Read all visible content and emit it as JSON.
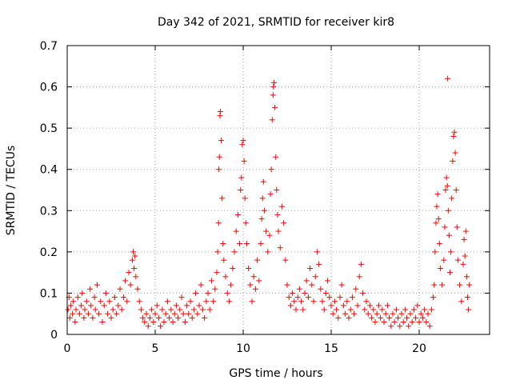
{
  "chart_data": {
    "type": "scatter",
    "title": "Day 342 of 2021, SRMTID for receiver kir8",
    "xlabel": "GPS time / hours",
    "ylabel": "SRMTID / TECUs",
    "xlim": [
      0,
      24
    ],
    "ylim": [
      0,
      0.7
    ],
    "xticks": [
      0,
      5,
      10,
      15,
      20
    ],
    "xtick_labels": [
      "0",
      "5",
      "10",
      "15",
      "20"
    ],
    "yticks": [
      0,
      0.1,
      0.2,
      0.3,
      0.4,
      0.5,
      0.6,
      0.7
    ],
    "ytick_labels": [
      "0",
      "0.1",
      "0.2",
      "0.3",
      "0.4",
      "0.5",
      "0.6",
      "0.7"
    ],
    "grid": true,
    "marker": "plus",
    "color": "#ff0000",
    "series": [
      {
        "name": "SRMTID",
        "points": [
          [
            0.05,
            0.06
          ],
          [
            0.1,
            0.09
          ],
          [
            0.15,
            0.04
          ],
          [
            0.2,
            0.07
          ],
          [
            0.3,
            0.05
          ],
          [
            0.35,
            0.08
          ],
          [
            0.45,
            0.03
          ],
          [
            0.5,
            0.06
          ],
          [
            0.6,
            0.09
          ],
          [
            0.7,
            0.05
          ],
          [
            0.8,
            0.07
          ],
          [
            0.85,
            0.1
          ],
          [
            0.95,
            0.04
          ],
          [
            1.0,
            0.06
          ],
          [
            1.1,
            0.08
          ],
          [
            1.2,
            0.05
          ],
          [
            1.3,
            0.11
          ],
          [
            1.35,
            0.07
          ],
          [
            1.45,
            0.04
          ],
          [
            1.55,
            0.09
          ],
          [
            1.6,
            0.06
          ],
          [
            1.7,
            0.12
          ],
          [
            1.8,
            0.05
          ],
          [
            1.9,
            0.08
          ],
          [
            2.0,
            0.03
          ],
          [
            2.1,
            0.07
          ],
          [
            2.2,
            0.1
          ],
          [
            2.3,
            0.05
          ],
          [
            2.4,
            0.08
          ],
          [
            2.5,
            0.04
          ],
          [
            2.6,
            0.06
          ],
          [
            2.7,
            0.09
          ],
          [
            2.8,
            0.05
          ],
          [
            2.9,
            0.07
          ],
          [
            3.0,
            0.11
          ],
          [
            3.1,
            0.06
          ],
          [
            3.2,
            0.09
          ],
          [
            3.3,
            0.13
          ],
          [
            3.4,
            0.08
          ],
          [
            3.5,
            0.15
          ],
          [
            3.6,
            0.12
          ],
          [
            3.7,
            0.18
          ],
          [
            3.75,
            0.2
          ],
          [
            3.8,
            0.16
          ],
          [
            3.85,
            0.19
          ],
          [
            3.9,
            0.14
          ],
          [
            4.0,
            0.11
          ],
          [
            4.1,
            0.08
          ],
          [
            4.2,
            0.06
          ],
          [
            4.3,
            0.04
          ],
          [
            4.4,
            0.03
          ],
          [
            4.5,
            0.05
          ],
          [
            4.6,
            0.02
          ],
          [
            4.7,
            0.04
          ],
          [
            4.8,
            0.06
          ],
          [
            4.9,
            0.03
          ],
          [
            5.0,
            0.05
          ],
          [
            5.1,
            0.07
          ],
          [
            5.2,
            0.04
          ],
          [
            5.3,
            0.02
          ],
          [
            5.4,
            0.06
          ],
          [
            5.5,
            0.03
          ],
          [
            5.6,
            0.05
          ],
          [
            5.7,
            0.08
          ],
          [
            5.8,
            0.04
          ],
          [
            5.9,
            0.06
          ],
          [
            6.0,
            0.03
          ],
          [
            6.1,
            0.05
          ],
          [
            6.2,
            0.07
          ],
          [
            6.3,
            0.04
          ],
          [
            6.4,
            0.06
          ],
          [
            6.5,
            0.09
          ],
          [
            6.6,
            0.05
          ],
          [
            6.7,
            0.03
          ],
          [
            6.8,
            0.07
          ],
          [
            6.9,
            0.05
          ],
          [
            7.0,
            0.08
          ],
          [
            7.1,
            0.04
          ],
          [
            7.2,
            0.06
          ],
          [
            7.3,
            0.1
          ],
          [
            7.4,
            0.05
          ],
          [
            7.5,
            0.07
          ],
          [
            7.6,
            0.12
          ],
          [
            7.7,
            0.06
          ],
          [
            7.8,
            0.04
          ],
          [
            7.9,
            0.08
          ],
          [
            8.0,
            0.1
          ],
          [
            8.1,
            0.06
          ],
          [
            8.2,
            0.13
          ],
          [
            8.3,
            0.08
          ],
          [
            8.4,
            0.11
          ],
          [
            8.5,
            0.15
          ],
          [
            8.55,
            0.2
          ],
          [
            8.6,
            0.27
          ],
          [
            8.62,
            0.4
          ],
          [
            8.65,
            0.43
          ],
          [
            8.68,
            0.53
          ],
          [
            8.7,
            0.54
          ],
          [
            8.75,
            0.47
          ],
          [
            8.8,
            0.33
          ],
          [
            8.85,
            0.22
          ],
          [
            8.9,
            0.18
          ],
          [
            9.0,
            0.14
          ],
          [
            9.1,
            0.1
          ],
          [
            9.2,
            0.08
          ],
          [
            9.3,
            0.12
          ],
          [
            9.4,
            0.16
          ],
          [
            9.5,
            0.2
          ],
          [
            9.6,
            0.25
          ],
          [
            9.7,
            0.29
          ],
          [
            9.8,
            0.22
          ],
          [
            9.85,
            0.35
          ],
          [
            9.9,
            0.38
          ],
          [
            9.95,
            0.46
          ],
          [
            10.0,
            0.47
          ],
          [
            10.05,
            0.42
          ],
          [
            10.1,
            0.33
          ],
          [
            10.15,
            0.27
          ],
          [
            10.2,
            0.22
          ],
          [
            10.3,
            0.16
          ],
          [
            10.4,
            0.12
          ],
          [
            10.5,
            0.08
          ],
          [
            10.6,
            0.14
          ],
          [
            10.7,
            0.11
          ],
          [
            10.8,
            0.18
          ],
          [
            10.9,
            0.13
          ],
          [
            11.0,
            0.22
          ],
          [
            11.05,
            0.28
          ],
          [
            11.1,
            0.33
          ],
          [
            11.15,
            0.37
          ],
          [
            11.2,
            0.3
          ],
          [
            11.3,
            0.25
          ],
          [
            11.4,
            0.2
          ],
          [
            11.5,
            0.24
          ],
          [
            11.55,
            0.34
          ],
          [
            11.6,
            0.4
          ],
          [
            11.65,
            0.52
          ],
          [
            11.7,
            0.58
          ],
          [
            11.72,
            0.6
          ],
          [
            11.75,
            0.61
          ],
          [
            11.8,
            0.55
          ],
          [
            11.85,
            0.43
          ],
          [
            11.9,
            0.35
          ],
          [
            11.95,
            0.29
          ],
          [
            12.0,
            0.25
          ],
          [
            12.1,
            0.21
          ],
          [
            12.2,
            0.31
          ],
          [
            12.3,
            0.27
          ],
          [
            12.4,
            0.18
          ],
          [
            12.5,
            0.12
          ],
          [
            12.6,
            0.09
          ],
          [
            12.7,
            0.07
          ],
          [
            12.8,
            0.1
          ],
          [
            12.9,
            0.08
          ],
          [
            13.0,
            0.06
          ],
          [
            13.1,
            0.09
          ],
          [
            13.2,
            0.11
          ],
          [
            13.3,
            0.08
          ],
          [
            13.4,
            0.06
          ],
          [
            13.5,
            0.1
          ],
          [
            13.6,
            0.13
          ],
          [
            13.7,
            0.09
          ],
          [
            13.8,
            0.16
          ],
          [
            13.9,
            0.12
          ],
          [
            14.0,
            0.08
          ],
          [
            14.1,
            0.14
          ],
          [
            14.2,
            0.2
          ],
          [
            14.3,
            0.17
          ],
          [
            14.4,
            0.11
          ],
          [
            14.5,
            0.08
          ],
          [
            14.6,
            0.06
          ],
          [
            14.7,
            0.1
          ],
          [
            14.8,
            0.13
          ],
          [
            14.9,
            0.09
          ],
          [
            15.0,
            0.07
          ],
          [
            15.1,
            0.05
          ],
          [
            15.2,
            0.08
          ],
          [
            15.3,
            0.06
          ],
          [
            15.4,
            0.04
          ],
          [
            15.5,
            0.09
          ],
          [
            15.6,
            0.12
          ],
          [
            15.7,
            0.07
          ],
          [
            15.8,
            0.05
          ],
          [
            15.9,
            0.08
          ],
          [
            16.0,
            0.04
          ],
          [
            16.1,
            0.06
          ],
          [
            16.2,
            0.09
          ],
          [
            16.3,
            0.05
          ],
          [
            16.4,
            0.11
          ],
          [
            16.5,
            0.07
          ],
          [
            16.6,
            0.14
          ],
          [
            16.7,
            0.17
          ],
          [
            16.8,
            0.1
          ],
          [
            16.9,
            0.06
          ],
          [
            17.0,
            0.08
          ],
          [
            17.1,
            0.05
          ],
          [
            17.2,
            0.07
          ],
          [
            17.3,
            0.04
          ],
          [
            17.4,
            0.06
          ],
          [
            17.5,
            0.03
          ],
          [
            17.6,
            0.05
          ],
          [
            17.7,
            0.07
          ],
          [
            17.8,
            0.04
          ],
          [
            17.9,
            0.06
          ],
          [
            18.0,
            0.03
          ],
          [
            18.1,
            0.05
          ],
          [
            18.2,
            0.07
          ],
          [
            18.3,
            0.04
          ],
          [
            18.4,
            0.02
          ],
          [
            18.5,
            0.05
          ],
          [
            18.6,
            0.03
          ],
          [
            18.7,
            0.06
          ],
          [
            18.8,
            0.04
          ],
          [
            18.9,
            0.02
          ],
          [
            19.0,
            0.05
          ],
          [
            19.1,
            0.03
          ],
          [
            19.2,
            0.06
          ],
          [
            19.3,
            0.04
          ],
          [
            19.4,
            0.02
          ],
          [
            19.5,
            0.05
          ],
          [
            19.6,
            0.03
          ],
          [
            19.7,
            0.06
          ],
          [
            19.8,
            0.04
          ],
          [
            19.9,
            0.07
          ],
          [
            20.0,
            0.03
          ],
          [
            20.1,
            0.05
          ],
          [
            20.2,
            0.04
          ],
          [
            20.3,
            0.06
          ],
          [
            20.4,
            0.03
          ],
          [
            20.5,
            0.05
          ],
          [
            20.6,
            0.02
          ],
          [
            20.7,
            0.06
          ],
          [
            20.8,
            0.09
          ],
          [
            20.85,
            0.12
          ],
          [
            20.9,
            0.2
          ],
          [
            20.95,
            0.27
          ],
          [
            21.0,
            0.31
          ],
          [
            21.05,
            0.34
          ],
          [
            21.1,
            0.28
          ],
          [
            21.15,
            0.22
          ],
          [
            21.2,
            0.16
          ],
          [
            21.3,
            0.12
          ],
          [
            21.4,
            0.18
          ],
          [
            21.45,
            0.26
          ],
          [
            21.5,
            0.35
          ],
          [
            21.55,
            0.38
          ],
          [
            21.6,
            0.36
          ],
          [
            21.62,
            0.62
          ],
          [
            21.65,
            0.3
          ],
          [
            21.7,
            0.24
          ],
          [
            21.75,
            0.15
          ],
          [
            21.8,
            0.2
          ],
          [
            21.85,
            0.33
          ],
          [
            21.9,
            0.42
          ],
          [
            21.95,
            0.48
          ],
          [
            22.0,
            0.49
          ],
          [
            22.05,
            0.44
          ],
          [
            22.1,
            0.35
          ],
          [
            22.15,
            0.26
          ],
          [
            22.2,
            0.18
          ],
          [
            22.3,
            0.12
          ],
          [
            22.4,
            0.08
          ],
          [
            22.5,
            0.17
          ],
          [
            22.55,
            0.23
          ],
          [
            22.6,
            0.19
          ],
          [
            22.65,
            0.25
          ],
          [
            22.7,
            0.14
          ],
          [
            22.75,
            0.09
          ],
          [
            22.8,
            0.06
          ],
          [
            22.85,
            0.12
          ]
        ]
      }
    ]
  }
}
